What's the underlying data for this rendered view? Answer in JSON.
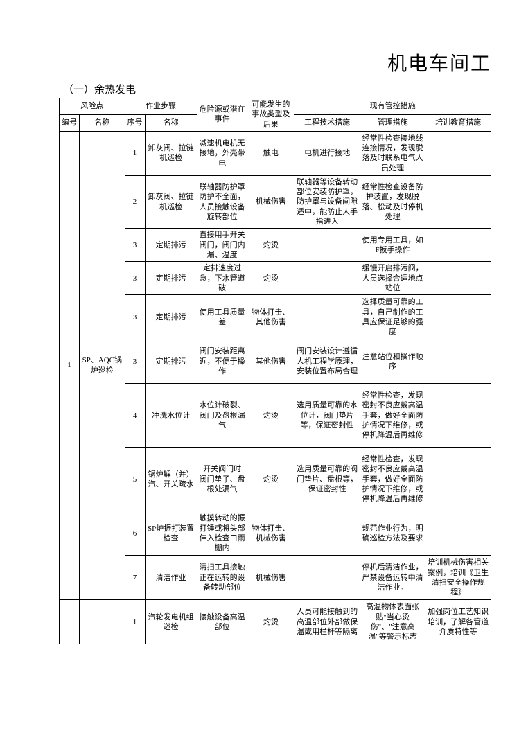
{
  "title": "机电车间工",
  "section": "（一）余热发电",
  "headers": {
    "riskPoint": "风险点",
    "workStep": "作业步骤",
    "hazard": "危险源或潜在事件",
    "accident": "可能发生的事故类型及后果",
    "existing": "现有管控措施",
    "idx": "编号",
    "riskName": "名称",
    "stepNo": "序号",
    "stepName": "名称",
    "eng": "工程技术措施",
    "mgmt": "管理措施",
    "edu": "培训教育措施"
  },
  "group1": {
    "idx": "1",
    "riskName": "SP、AQC锅炉巡检",
    "rows": [
      {
        "stepNo": "1",
        "stepName": "卸灰阀、拉链机巡检",
        "hazard": "减速机电机无接地，外壳带电",
        "accident": "触电",
        "eng": "电机进行接地",
        "mgmt": "经常性检查接地线连接情况，发现脱落及时联系电气人员处理",
        "edu": ""
      },
      {
        "stepNo": "2",
        "stepName": "卸灰阀、拉链机巡检",
        "hazard": "联轴器防护罩防护不全面，人员接触设备旋转部位",
        "accident": "机械伤害",
        "eng": "联轴器等设备转动部位安装防护罩，防护罩与设备间隙适中，能防止人手指进入",
        "mgmt": "经常性检查设备防护装置，发现脱落、松动及时停机处理",
        "edu": ""
      },
      {
        "stepNo": "3",
        "stepName": "定期排污",
        "hazard": "直接用手开关阀门，阀门内漏、温度",
        "accident": "灼烫",
        "eng": "",
        "mgmt": "使用专用工具，如F扳手操作",
        "edu": ""
      },
      {
        "stepNo": "3",
        "stepName": "定期排污",
        "hazard": "定排速度过急，下水管道破",
        "accident": "灼烫",
        "eng": "",
        "mgmt": "缓慢开启排污阀，人员选择合适地点站位",
        "edu": ""
      },
      {
        "stepNo": "3",
        "stepName": "定期排污",
        "hazard": "使用工具质量差",
        "accident": "物体打击、其他伤害",
        "eng": "",
        "mgmt": "选择质量可靠的工具，自己制作的工具应保证足够的强度",
        "edu": ""
      },
      {
        "stepNo": "3",
        "stepName": "定期排污",
        "hazard": "阀门安装距离近，不便于操作",
        "accident": "其他伤害",
        "eng": "阀门安装设计遵循人机工程学原理，安装位置布局合理",
        "mgmt": "注意站位和操作顺序",
        "edu": ""
      },
      {
        "stepNo": "4",
        "stepName": "冲洗水位计",
        "hazard": "水位计破裂、阀门及盘根漏气",
        "accident": "灼烫",
        "eng": "选用质量可靠的水位计，阀门垫片等，保证密封性",
        "mgmt": "经常性检查，发现密封不良应戴高温手套，做好全面防护情况下维修，或停机降温后再维修",
        "edu": ""
      },
      {
        "stepNo": "5",
        "stepName": "锅炉解（并）汽、开关疏水",
        "hazard": "开关阀门时　阀门垫子、盘根处漏气",
        "accident": "灼烫",
        "eng": "选用质量可靠的阀门垫片、盘根等，保证密封性",
        "mgmt": "经常性检查，发现密封不良应戴高温手套，做好全面防护情况下维修，或停机降温后再维修",
        "edu": ""
      },
      {
        "stepNo": "6",
        "stepName": "SP炉振打装置检查",
        "hazard": "触摸转动的振打锤或将头部伸入检查口雨棚内",
        "accident": "物体打击、机械伤害",
        "eng": "",
        "mgmt": "规范作业行为，明确巡检方法及要求",
        "edu": ""
      },
      {
        "stepNo": "7",
        "stepName": "清洁作业",
        "hazard": "清扫工具接触正在运转的设备转动部位",
        "accident": "机械伤害",
        "eng": "",
        "mgmt": "停机后清洁作业，严禁设备运转中清洁作业。",
        "edu": "培训机械伤害相关案例，培训《卫生清扫安全操作规程》"
      }
    ]
  },
  "group2": {
    "rows": [
      {
        "stepNo": "1",
        "stepName": "汽轮发电机组巡检",
        "hazard": "接触设备高温部位",
        "accident": "灼烫",
        "eng": "人员可能接触到的高温部位外部做保温或用栏杆等隔离",
        "mgmt": "高温物体表面张贴\"当心烫伤\"、\"注意高温\"等警示标志",
        "edu": "加强岗位工艺知识培训，了解各管道介质特性等"
      }
    ]
  }
}
